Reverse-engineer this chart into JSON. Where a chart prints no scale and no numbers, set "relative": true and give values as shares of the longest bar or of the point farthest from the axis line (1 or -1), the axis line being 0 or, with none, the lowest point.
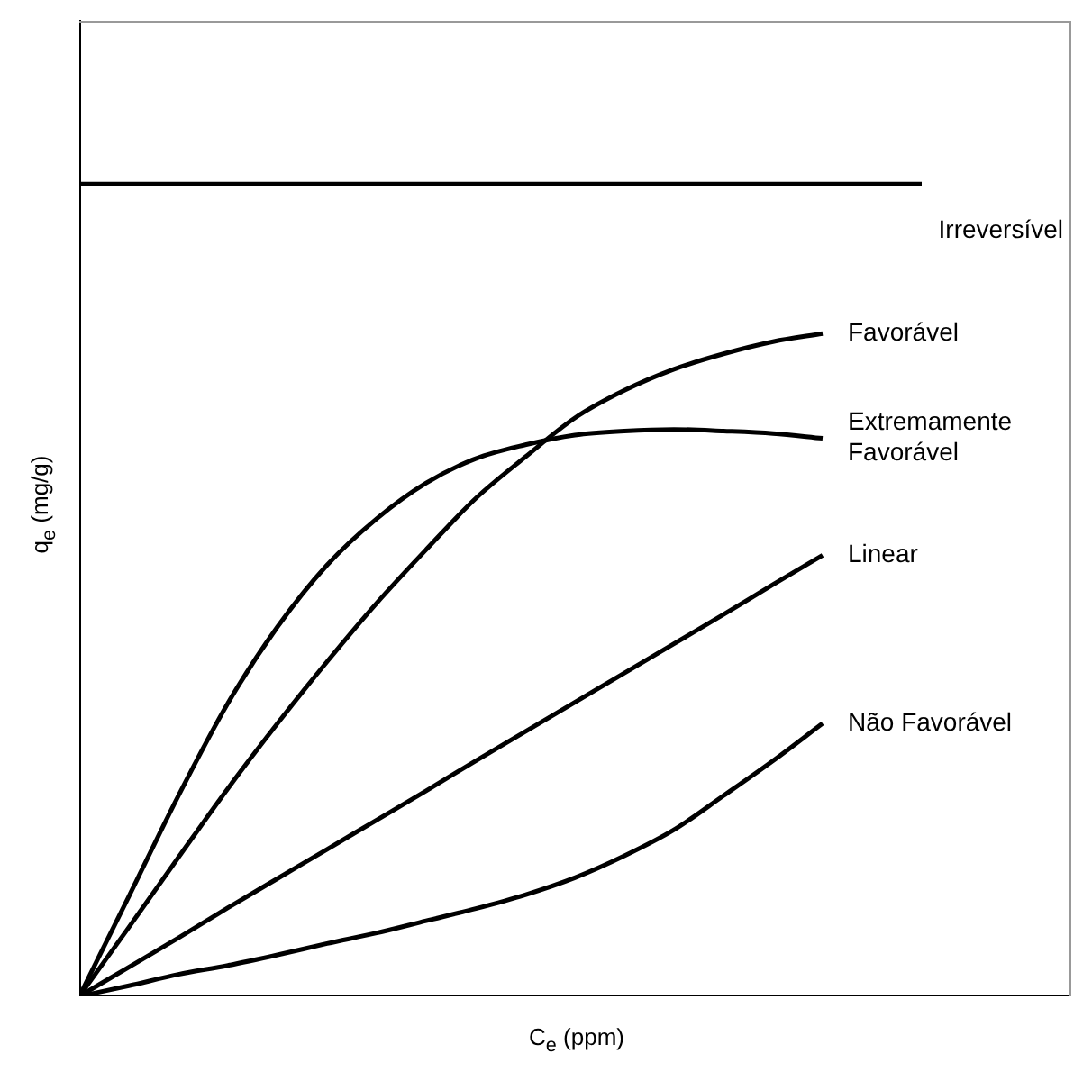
{
  "chart_data": {
    "type": "line",
    "relative": true,
    "xlabel": "C$_{e}$ (ppm)",
    "ylabel": "q$_{e}$ (mg/g)",
    "categories": [
      null,
      null,
      null,
      null,
      null,
      null,
      null,
      null,
      null,
      null,
      null,
      null,
      null,
      null,
      null,
      null,
      null,
      null,
      null,
      null,
      null
    ],
    "series": [
      {
        "name": "Irreversível",
        "color": "#000000",
        "values": [
          1,
          1,
          1,
          1,
          1,
          1,
          1,
          1,
          1,
          1,
          1,
          1,
          1,
          1,
          1,
          1,
          1,
          1,
          null,
          null,
          null
        ]
      },
      {
        "name": "Favorável",
        "color": "#000000",
        "values": [
          0,
          0.085,
          0.171,
          0.256,
          0.336,
          0.412,
          0.484,
          0.55,
          0.613,
          0.664,
          0.712,
          0.746,
          0.772,
          0.791,
          0.806,
          0.816,
          null,
          null,
          null,
          null,
          null
        ]
      },
      {
        "name": "Extremamente Favorável",
        "color": "#000000",
        "values": [
          0,
          0.123,
          0.247,
          0.361,
          0.455,
          0.531,
          0.588,
          0.632,
          0.662,
          0.679,
          0.691,
          0.696,
          0.698,
          0.696,
          0.693,
          0.687,
          null,
          null,
          null,
          null,
          null
        ]
      },
      {
        "name": "Linear",
        "color": "#000000",
        "values": [
          0,
          0.036,
          0.072,
          0.109,
          0.145,
          0.181,
          0.217,
          0.253,
          0.29,
          0.326,
          0.362,
          0.398,
          0.434,
          0.47,
          0.507,
          0.543,
          null,
          null,
          null,
          null,
          null
        ]
      },
      {
        "name": "Não Favorável",
        "color": "#000000",
        "values": [
          0,
          0.013,
          0.027,
          0.038,
          0.051,
          0.065,
          0.078,
          0.093,
          0.108,
          0.125,
          0.146,
          0.173,
          0.205,
          0.247,
          0.29,
          0.336,
          null,
          null,
          null,
          null,
          null
        ]
      }
    ]
  }
}
